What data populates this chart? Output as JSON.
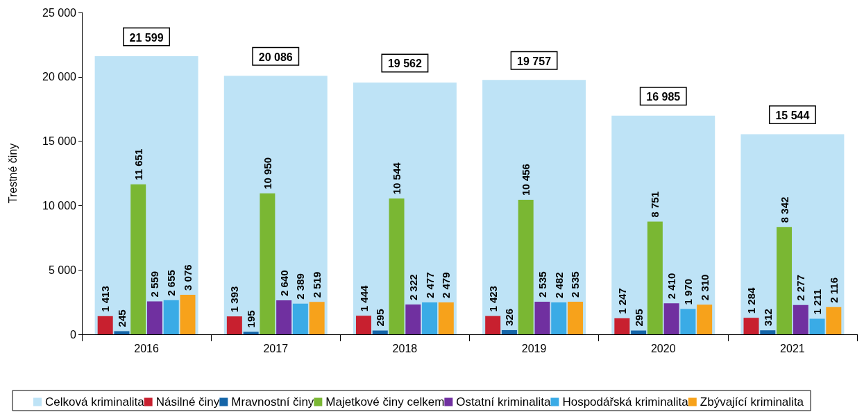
{
  "chart_data": {
    "type": "bar",
    "ylabel": "Trestné činy",
    "categories": [
      "2016",
      "2017",
      "2018",
      "2019",
      "2020",
      "2021"
    ],
    "ylim": [
      0,
      25000
    ],
    "yticks": [
      {
        "value": 0,
        "label": "0"
      },
      {
        "value": 5000,
        "label": "5 000"
      },
      {
        "value": 10000,
        "label": "10 000"
      },
      {
        "value": 15000,
        "label": "15 000"
      },
      {
        "value": 20000,
        "label": "20 000"
      },
      {
        "value": 25000,
        "label": "25 000"
      }
    ],
    "legend": "bottom",
    "series": [
      {
        "name": "Celková kriminalita",
        "color": "#bee3f6",
        "values": [
          21599,
          20086,
          19562,
          19757,
          16985,
          15544
        ],
        "value_labels": [
          "21 599",
          "20 086",
          "19 562",
          "19 757",
          "16 985",
          "15 544"
        ]
      },
      {
        "name": "Násilné činy",
        "color": "#c8202f",
        "values": [
          1413,
          1393,
          1444,
          1423,
          1247,
          1284
        ],
        "value_labels": [
          "1 413",
          "1 393",
          "1 444",
          "1 423",
          "1 247",
          "1 284"
        ]
      },
      {
        "name": "Mravnostní činy",
        "color": "#1565a8",
        "values": [
          245,
          195,
          295,
          326,
          295,
          312
        ],
        "value_labels": [
          "245",
          "195",
          "295",
          "326",
          "295",
          "312"
        ]
      },
      {
        "name": "Majetkové činy celkem",
        "color": "#7ab733",
        "values": [
          11651,
          10950,
          10544,
          10456,
          8751,
          8342
        ],
        "value_labels": [
          "11 651",
          "10 950",
          "10 544",
          "10 456",
          "8 751",
          "8 342"
        ]
      },
      {
        "name": "Ostatní kriminalita",
        "color": "#7030a0",
        "values": [
          2559,
          2640,
          2322,
          2535,
          2410,
          2277
        ],
        "value_labels": [
          "2 559",
          "2 640",
          "2 322",
          "2 535",
          "2 410",
          "2 277"
        ]
      },
      {
        "name": "Hospodářská kriminalita",
        "color": "#3aabe6",
        "values": [
          2655,
          2389,
          2477,
          2482,
          1970,
          1211
        ],
        "value_labels": [
          "2 655",
          "2 389",
          "2 477",
          "2 482",
          "1 970",
          "1 211"
        ]
      },
      {
        "name": "Zbývající kriminalita",
        "color": "#f7a21b",
        "values": [
          3076,
          2519,
          2479,
          2535,
          2310,
          2116
        ],
        "value_labels": [
          "3 076",
          "2 519",
          "2 479",
          "2 535",
          "2 310",
          "2 116"
        ]
      }
    ]
  }
}
